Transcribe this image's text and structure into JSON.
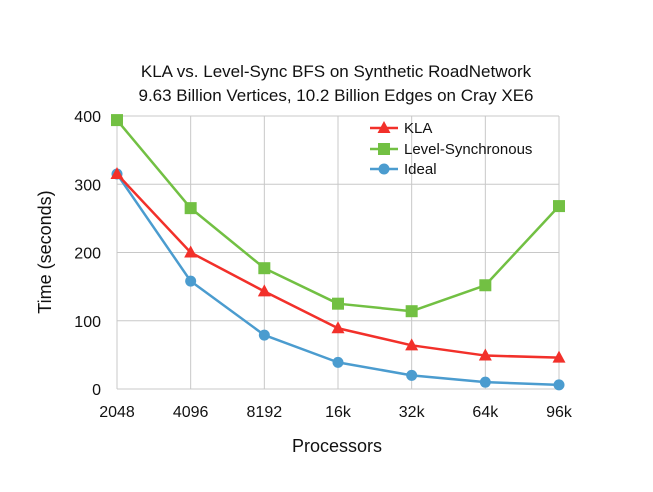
{
  "chart_data": {
    "type": "line",
    "title": [
      "KLA vs. Level-Sync BFS on Synthetic RoadNetwork",
      "9.63 Billion Vertices, 10.2 Billion Edges on Cray XE6"
    ],
    "xlabel": "Processors",
    "ylabel": "Time (seconds)",
    "categories": [
      "2048",
      "4096",
      "8192",
      "16k",
      "32k",
      "64k",
      "96k"
    ],
    "ylim": [
      0,
      400
    ],
    "yticks": [
      "0",
      "100",
      "200",
      "300",
      "400"
    ],
    "grid": true,
    "legend_position": "top-right",
    "series": [
      {
        "name": "KLA",
        "color": "#f2302a",
        "marker": "triangle",
        "values": [
          315,
          200,
          143,
          89,
          64,
          49,
          46
        ]
      },
      {
        "name": "Level-Synchronous",
        "color": "#72c043",
        "marker": "square",
        "values": [
          394,
          265,
          177,
          125,
          114,
          152,
          268
        ]
      },
      {
        "name": "Ideal",
        "color": "#4b9ccf",
        "marker": "circle",
        "values": [
          315,
          158,
          79,
          39,
          20,
          10,
          6
        ]
      }
    ]
  }
}
